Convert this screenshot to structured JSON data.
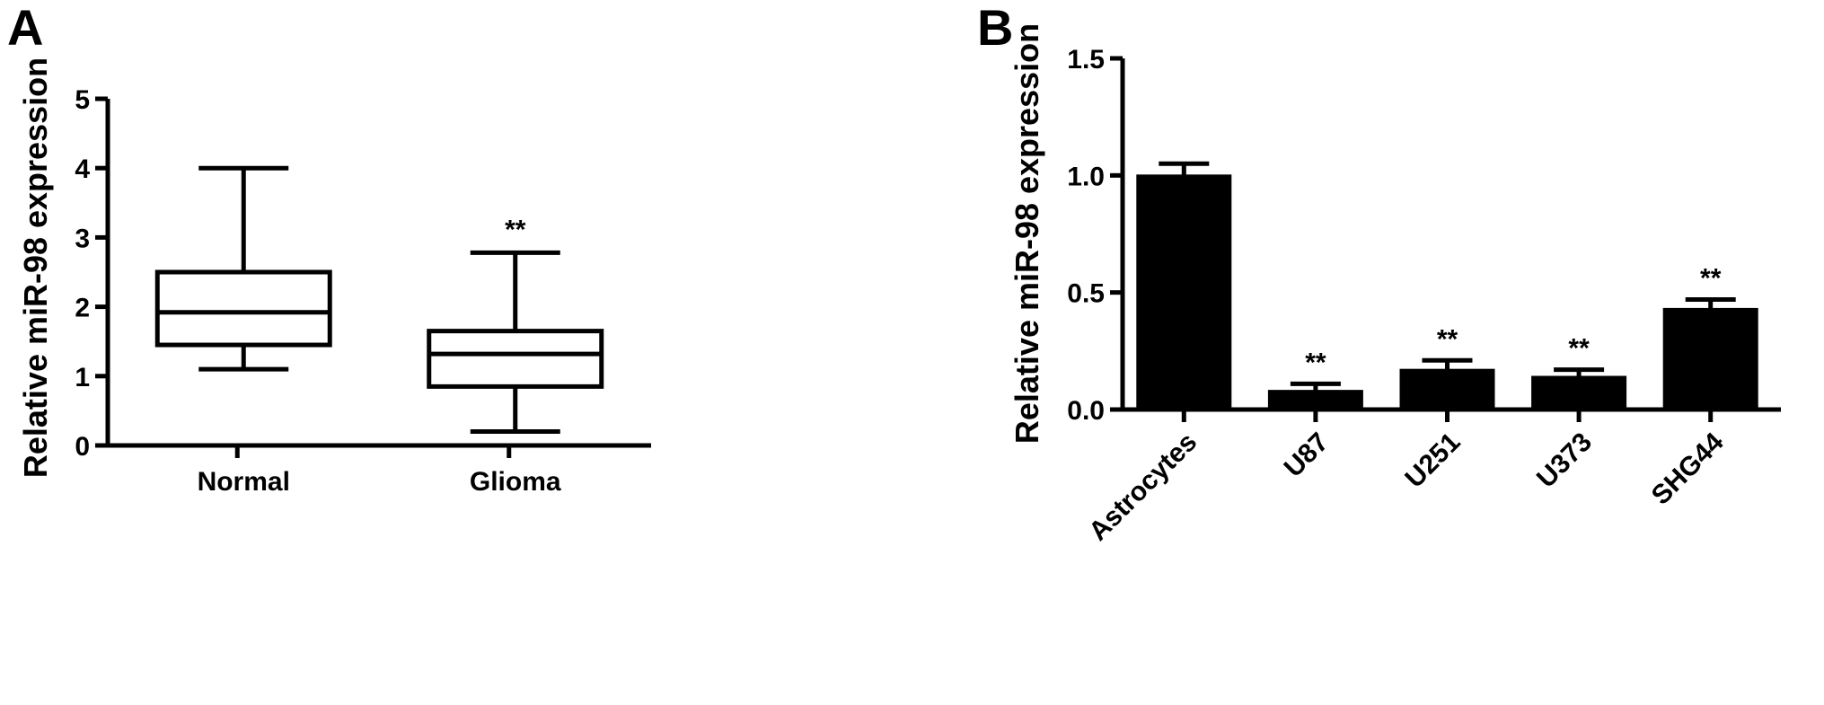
{
  "panels": [
    {
      "letter": "A"
    },
    {
      "letter": "B"
    }
  ],
  "chart_data": [
    {
      "type": "box",
      "panel": "A",
      "title": "",
      "xlabel": "",
      "ylabel": "Relative miR-98 expression",
      "ylim": [
        0,
        5
      ],
      "yticks": [
        0,
        1,
        2,
        3,
        4,
        5
      ],
      "grid": false,
      "legend": false,
      "color": "#000000",
      "categories": [
        "Normal",
        "Glioma"
      ],
      "boxes": [
        {
          "category": "Normal",
          "min": 1.1,
          "q1": 1.45,
          "median": 1.92,
          "q3": 2.5,
          "max": 4.0,
          "annotation": ""
        },
        {
          "category": "Glioma",
          "min": 0.2,
          "q1": 0.85,
          "median": 1.32,
          "q3": 1.65,
          "max": 2.78,
          "annotation": "**"
        }
      ]
    },
    {
      "type": "bar",
      "panel": "B",
      "title": "",
      "xlabel": "",
      "ylabel": "Relative miR-98 expression",
      "ylim": [
        0,
        1.5
      ],
      "yticks": [
        "0.0",
        "0.5",
        "1.0",
        "1.5"
      ],
      "grid": false,
      "legend": false,
      "color": "#000000",
      "categories": [
        "Astrocytes",
        "U87",
        "U251",
        "U373",
        "SHG44"
      ],
      "values": [
        1.0,
        0.08,
        0.17,
        0.14,
        0.43
      ],
      "errors": [
        0.05,
        0.03,
        0.04,
        0.03,
        0.04
      ],
      "annotations": [
        "",
        "**",
        "**",
        "**",
        "**"
      ]
    }
  ]
}
